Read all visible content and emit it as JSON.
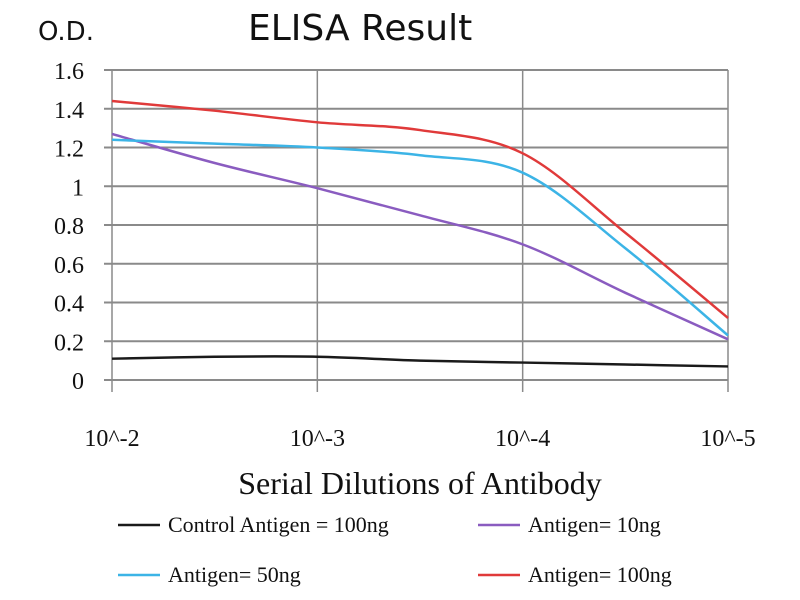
{
  "chart_data": {
    "type": "line",
    "title": "ELISA Result",
    "ylabel": "O.D.",
    "xlabel": "Serial Dilutions of Antibody",
    "x": [
      -2,
      -2.5,
      -3,
      -3.5,
      -4,
      -4.5,
      -5
    ],
    "x_ticks": [
      -2,
      -3,
      -4,
      -5
    ],
    "x_tick_labels": [
      "10^-2",
      "10^-3",
      "10^-4",
      "10^-5"
    ],
    "x_scale": "log10 dilution",
    "ylim": [
      0,
      1.6
    ],
    "y_ticks": [
      0,
      0.2,
      0.4,
      0.6,
      0.8,
      1,
      1.2,
      1.4,
      1.6
    ],
    "y_tick_labels": [
      "0",
      "0.2",
      "0.4",
      "0.6",
      "0.8",
      "1",
      "1.2",
      "1.4",
      "1.6"
    ],
    "grid": true,
    "legend_placement": "bottom",
    "series": [
      {
        "name": "Control Antigen = 100ng",
        "color": "#1a1a1a",
        "values": [
          0.11,
          0.12,
          0.12,
          0.1,
          0.09,
          0.08,
          0.07
        ]
      },
      {
        "name": "Antigen= 10ng",
        "color": "#8a5cc0",
        "values": [
          1.27,
          1.12,
          0.99,
          0.85,
          0.7,
          0.45,
          0.21
        ]
      },
      {
        "name": "Antigen= 50ng",
        "color": "#3cb4e6",
        "values": [
          1.24,
          1.22,
          1.2,
          1.16,
          1.07,
          0.68,
          0.23
        ]
      },
      {
        "name": "Antigen= 100ng",
        "color": "#e03a3a",
        "values": [
          1.44,
          1.39,
          1.33,
          1.29,
          1.17,
          0.76,
          0.32
        ]
      }
    ]
  }
}
